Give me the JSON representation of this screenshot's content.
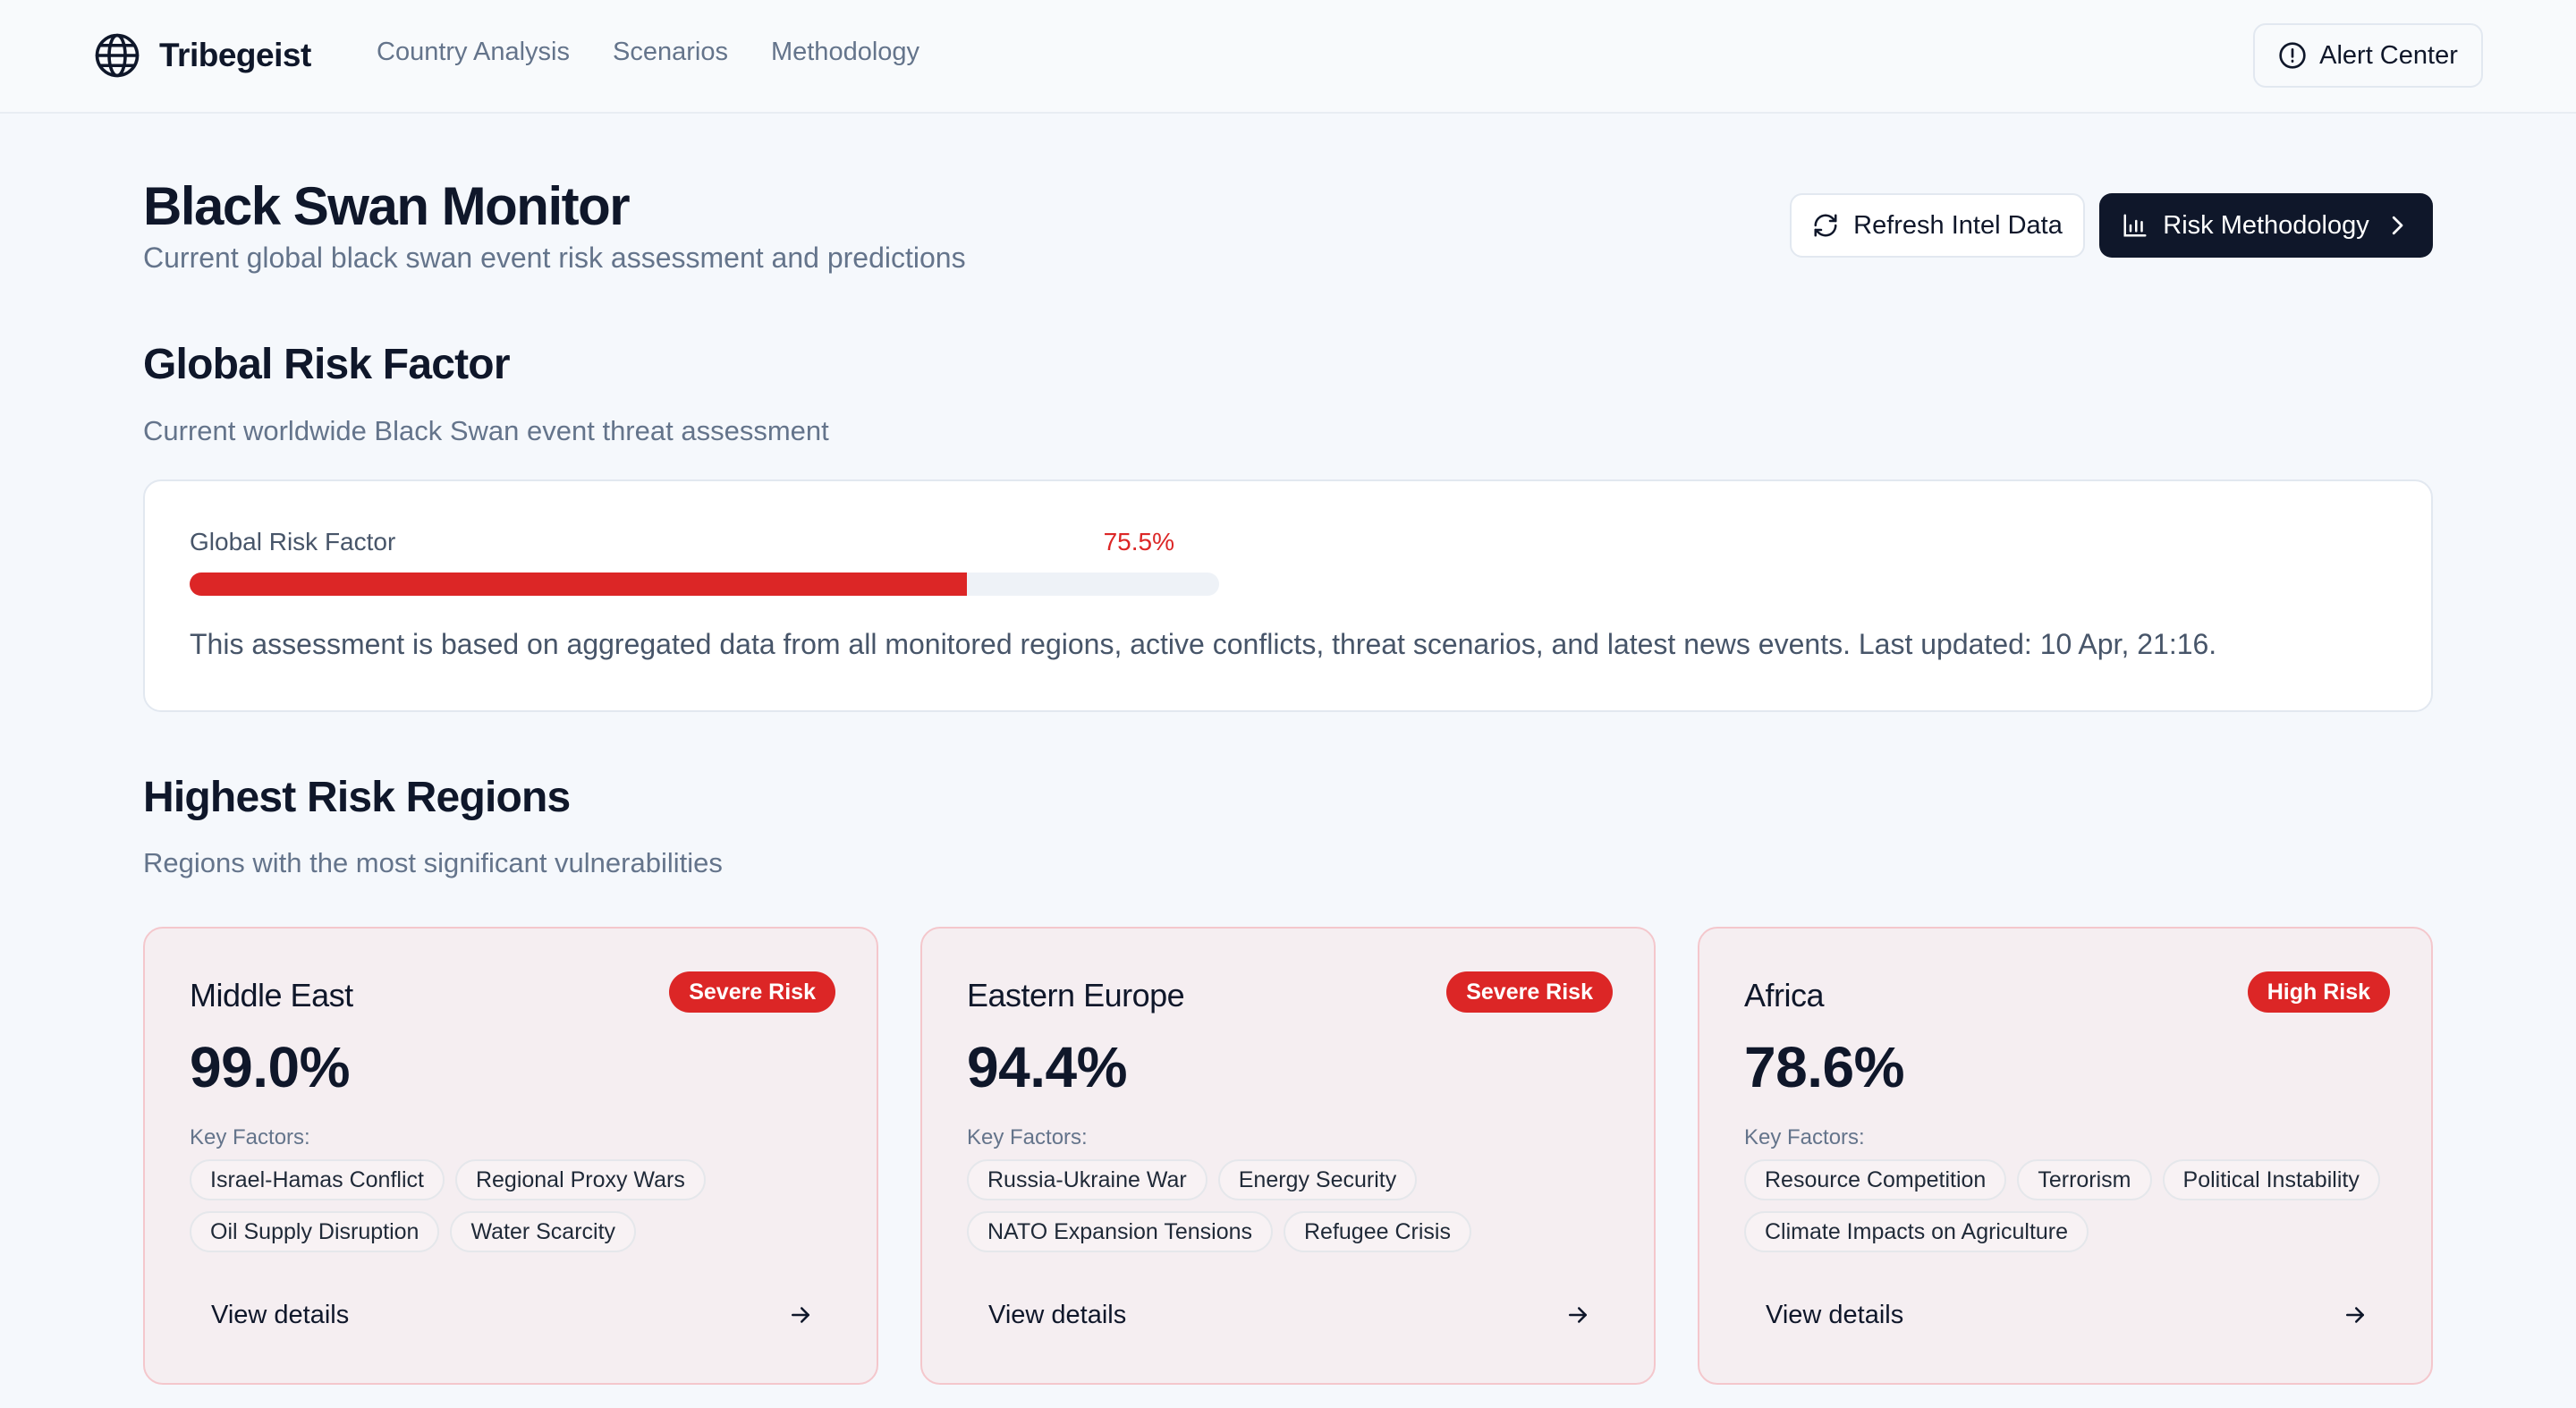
{
  "nav": {
    "brand": "Tribegeist",
    "links": [
      "Country Analysis",
      "Scenarios",
      "Methodology"
    ],
    "alert_label": "Alert Center"
  },
  "header": {
    "title": "Black Swan Monitor",
    "subtitle": "Current global black swan event risk assessment and predictions",
    "refresh_label": "Refresh Intel Data",
    "methodology_label": "Risk Methodology"
  },
  "global_risk": {
    "title": "Global Risk Factor",
    "subtitle": "Current worldwide Black Swan event threat assessment",
    "label": "Global Risk Factor",
    "value_text": "75.5%",
    "value": 75.5,
    "note": "This assessment is based on aggregated data from all monitored regions, active conflicts, threat scenarios, and latest news events. Last updated: 10 Apr, 21:16."
  },
  "regions_section": {
    "title": "Highest Risk Regions",
    "subtitle": "Regions with the most significant vulnerabilities"
  },
  "regions": [
    {
      "name": "Middle East",
      "badge": "Severe Risk",
      "percent": "99.0%",
      "factors_label": "Key Factors:",
      "factors": [
        "Israel-Hamas Conflict",
        "Regional Proxy Wars",
        "Oil Supply Disruption",
        "Water Scarcity"
      ],
      "cta": "View details"
    },
    {
      "name": "Eastern Europe",
      "badge": "Severe Risk",
      "percent": "94.4%",
      "factors_label": "Key Factors:",
      "factors": [
        "Russia-Ukraine War",
        "Energy Security",
        "NATO Expansion Tensions",
        "Refugee Crisis"
      ],
      "cta": "View details"
    },
    {
      "name": "Africa",
      "badge": "High Risk",
      "percent": "78.6%",
      "factors_label": "Key Factors:",
      "factors": [
        "Resource Competition",
        "Terrorism",
        "Political Instability",
        "Climate Impacts on Agriculture"
      ],
      "cta": "View details"
    }
  ],
  "colors": {
    "danger": "#dc2626",
    "primary": "#0f172a",
    "muted": "#64748b",
    "card_bg": "#f5eef1"
  }
}
